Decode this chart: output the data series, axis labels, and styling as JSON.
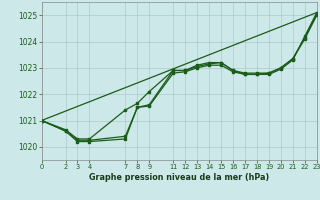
{
  "xlabel": "Graphe pression niveau de la mer (hPa)",
  "background_color": "#cde8e8",
  "grid_color": "#b0c8c8",
  "line_color": "#1a5c1a",
  "xlim": [
    0,
    23
  ],
  "ylim": [
    1019.5,
    1025.5
  ],
  "yticks": [
    1020,
    1021,
    1022,
    1023,
    1024,
    1025
  ],
  "xticks": [
    0,
    2,
    3,
    4,
    7,
    8,
    9,
    11,
    12,
    13,
    14,
    15,
    16,
    17,
    18,
    19,
    20,
    21,
    22,
    23
  ],
  "series": [
    {
      "x": [
        0,
        2,
        3,
        4,
        7,
        8,
        9,
        11,
        12,
        13,
        14,
        15,
        16,
        17,
        18,
        19,
        20,
        21,
        22,
        23
      ],
      "y": [
        1021.0,
        1020.6,
        1020.2,
        1020.2,
        1020.3,
        1021.5,
        1021.6,
        1022.9,
        1022.9,
        1023.1,
        1023.2,
        1023.2,
        1022.9,
        1022.8,
        1022.8,
        1022.8,
        1023.0,
        1023.35,
        1024.1,
        1025.0
      ],
      "marker": true,
      "lw": 0.9
    },
    {
      "x": [
        0,
        2,
        3,
        4,
        7,
        8,
        9,
        11,
        12,
        13,
        14,
        15,
        16,
        17,
        18,
        19,
        20,
        21,
        22,
        23
      ],
      "y": [
        1021.0,
        1020.6,
        1020.25,
        1020.25,
        1020.4,
        1021.5,
        1021.55,
        1022.8,
        1022.85,
        1023.0,
        1023.1,
        1023.1,
        1022.85,
        1022.75,
        1022.75,
        1022.75,
        1022.95,
        1023.3,
        1024.2,
        1025.1
      ],
      "marker": true,
      "lw": 0.9
    },
    {
      "x": [
        0,
        23
      ],
      "y": [
        1021.0,
        1025.1
      ],
      "marker": false,
      "lw": 0.9
    },
    {
      "x": [
        0,
        2,
        3,
        4,
        7,
        8,
        9,
        11,
        12,
        13,
        14,
        15,
        16,
        17,
        18,
        19,
        20,
        21,
        22,
        23
      ],
      "y": [
        1021.0,
        1020.65,
        1020.3,
        1020.3,
        1021.4,
        1021.65,
        1022.1,
        1022.9,
        1022.9,
        1023.05,
        1023.15,
        1023.2,
        1022.9,
        1022.75,
        1022.75,
        1022.8,
        1023.0,
        1023.35,
        1024.15,
        1025.05
      ],
      "marker": true,
      "lw": 0.9
    }
  ]
}
